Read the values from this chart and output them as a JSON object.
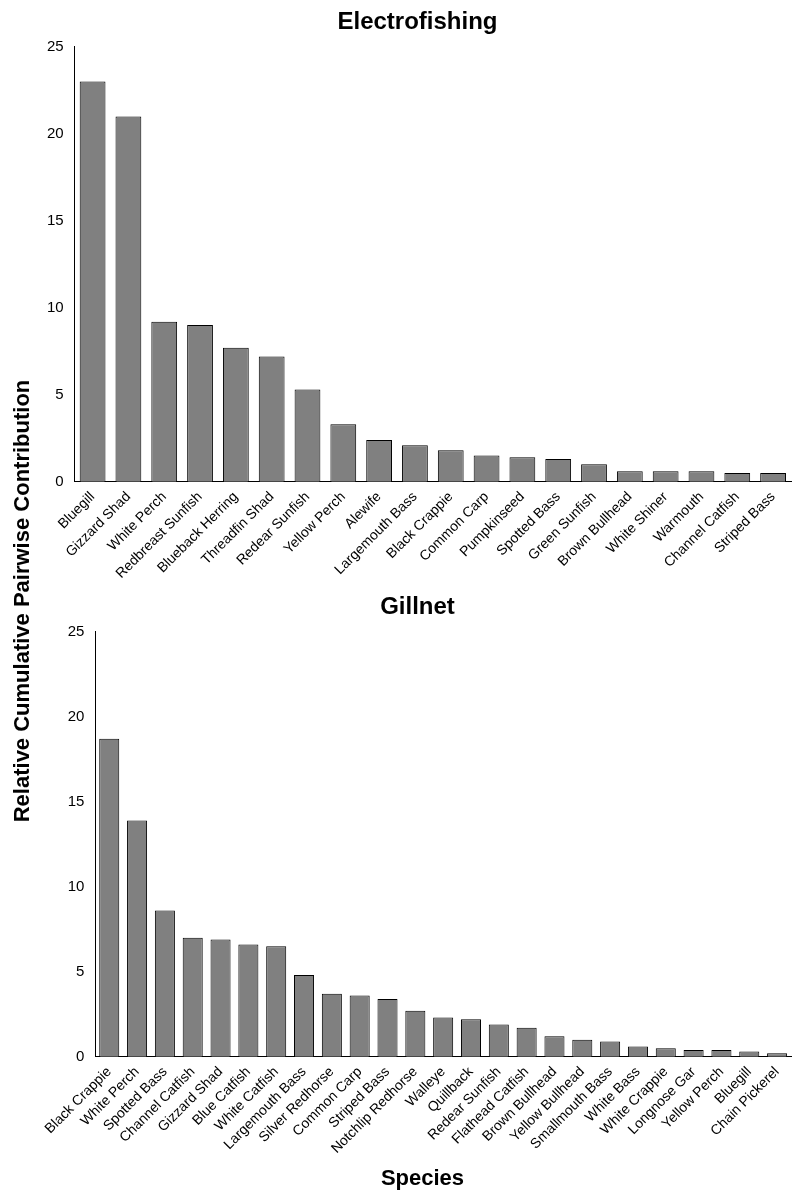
{
  "chart_data": [
    {
      "type": "bar",
      "title": "Electrofishing",
      "ylabel": "Relative Cumulative Pairwise Contribution",
      "categories": [
        "Bluegill",
        "Gizzard Shad",
        "White Perch",
        "Redbreast Sunfish",
        "Blueback Herring",
        "Threadfin Shad",
        "Redear Sunfish",
        "Yellow Perch",
        "Alewife",
        "Largemouth Bass",
        "Black Crappie",
        "Common Carp",
        "Pumpkinseed",
        "Spotted Bass",
        "Green Sunfish",
        "Brown Bullhead",
        "White Shiner",
        "Warmouth",
        "Channel Catfish",
        "Striped Bass"
      ],
      "values": [
        23,
        21,
        9.2,
        9.0,
        7.7,
        7.2,
        5.3,
        3.3,
        2.4,
        2.1,
        1.8,
        1.5,
        1.4,
        1.3,
        1.0,
        0.6,
        0.6,
        0.6,
        0.5,
        0.5
      ],
      "color": "#808080",
      "ylim": [
        0,
        25
      ],
      "yticks": [
        0,
        5,
        10,
        15,
        20,
        25
      ],
      "grid": false,
      "legend": false
    },
    {
      "type": "bar",
      "title": "Gillnet",
      "xlabel": "Species",
      "categories": [
        "Black Crappie",
        "White Perch",
        "Spotted Bass",
        "Channel Catfish",
        "Gizzard Shad",
        "Blue Catfish",
        "White Catfish",
        "Largemouth Bass",
        "Silver Redhorse",
        "Common Carp",
        "Striped Bass",
        "Notchlip Redhorse",
        "Walleye",
        "Quillback",
        "Redear Sunfish",
        "Flathead Catfish",
        "Brown Bullhead",
        "Yellow Bullhead",
        "Smallmouth Bass",
        "White Bass",
        "White Crappie",
        "Longnose Gar",
        "Yellow Perch",
        "Bluegill",
        "Chain Pickerel"
      ],
      "values": [
        18.7,
        13.9,
        8.6,
        7.0,
        6.9,
        6.6,
        6.5,
        4.8,
        3.7,
        3.6,
        3.4,
        2.7,
        2.3,
        2.2,
        1.9,
        1.7,
        1.2,
        1.0,
        0.9,
        0.6,
        0.5,
        0.4,
        0.4,
        0.3,
        0.2
      ],
      "color": "#808080",
      "ylim": [
        0,
        25
      ],
      "yticks": [
        0,
        5,
        10,
        15,
        20,
        25
      ],
      "grid": false,
      "legend": false
    }
  ]
}
